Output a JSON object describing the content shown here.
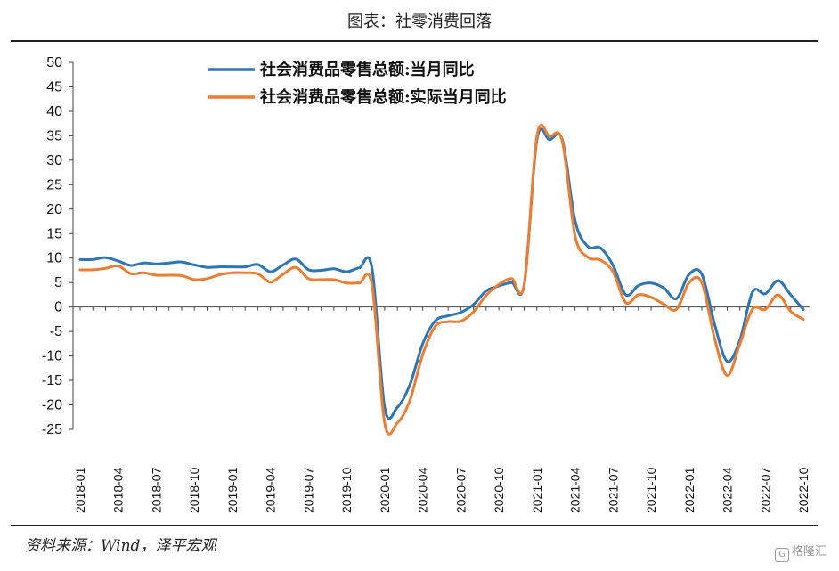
{
  "header": {
    "title": "图表：社零消费回落"
  },
  "footer": {
    "source": "资料来源：Wind，泽平宏观",
    "watermark": "格隆汇"
  },
  "chart_data": {
    "type": "line",
    "ylim": [
      -25,
      50
    ],
    "yticks": [
      50,
      45,
      40,
      35,
      30,
      25,
      20,
      15,
      10,
      5,
      0,
      -5,
      -10,
      -15,
      -20,
      -25
    ],
    "xticks": [
      "2018-01",
      "2018-04",
      "2018-07",
      "2018-10",
      "2019-01",
      "2019-04",
      "2019-07",
      "2019-10",
      "2020-01",
      "2020-04",
      "2020-07",
      "2020-10",
      "2021-01",
      "2021-04",
      "2021-07",
      "2021-10",
      "2022-01",
      "2022-04",
      "2022-07",
      "2022-10"
    ],
    "x": [
      "2018-01",
      "2018-02",
      "2018-03",
      "2018-04",
      "2018-05",
      "2018-06",
      "2018-07",
      "2018-08",
      "2018-09",
      "2018-10",
      "2018-11",
      "2018-12",
      "2019-01",
      "2019-02",
      "2019-03",
      "2019-04",
      "2019-05",
      "2019-06",
      "2019-07",
      "2019-08",
      "2019-09",
      "2019-10",
      "2019-11",
      "2019-12",
      "2020-01",
      "2020-02",
      "2020-03",
      "2020-04",
      "2020-05",
      "2020-06",
      "2020-07",
      "2020-08",
      "2020-09",
      "2020-10",
      "2020-11",
      "2020-12",
      "2021-01",
      "2021-02",
      "2021-03",
      "2021-04",
      "2021-05",
      "2021-06",
      "2021-07",
      "2021-08",
      "2021-09",
      "2021-10",
      "2021-11",
      "2021-12",
      "2022-01",
      "2022-02",
      "2022-03",
      "2022-04",
      "2022-05",
      "2022-06",
      "2022-07",
      "2022-08",
      "2022-09",
      "2022-10"
    ],
    "legend_position": "top-center",
    "series": [
      {
        "name": "社会消费品零售总额:当月同比",
        "color": "#2E75B6",
        "values": [
          9.7,
          9.7,
          10.1,
          9.4,
          8.5,
          9.0,
          8.8,
          9.0,
          9.2,
          8.6,
          8.1,
          8.2,
          8.2,
          8.2,
          8.7,
          7.2,
          8.6,
          9.8,
          7.6,
          7.5,
          7.8,
          7.2,
          8.0,
          8.0,
          -20.5,
          -20.5,
          -15.8,
          -7.5,
          -2.8,
          -1.8,
          -1.1,
          0.5,
          3.3,
          4.3,
          5.0,
          4.6,
          34.2,
          34.2,
          34.2,
          17.7,
          12.4,
          12.1,
          8.5,
          2.5,
          4.4,
          4.9,
          3.9,
          1.7,
          6.7,
          6.7,
          -3.5,
          -11.1,
          -6.7,
          3.1,
          2.7,
          5.4,
          2.5,
          -0.5
        ]
      },
      {
        "name": "社会消费品零售总额:实际当月同比",
        "color": "#ED7D31",
        "values": [
          7.6,
          7.6,
          7.9,
          8.4,
          6.8,
          7.0,
          6.5,
          6.5,
          6.4,
          5.6,
          5.8,
          6.6,
          7.0,
          7.0,
          6.8,
          5.1,
          6.7,
          8.1,
          5.8,
          5.6,
          5.6,
          4.9,
          4.9,
          4.6,
          -23.7,
          -23.7,
          -19.0,
          -9.7,
          -3.9,
          -3.0,
          -2.9,
          -1.0,
          2.4,
          4.6,
          5.8,
          4.6,
          34.9,
          34.9,
          33.9,
          14.6,
          10.2,
          9.6,
          7.2,
          0.9,
          2.5,
          2.0,
          0.6,
          -0.5,
          5.0,
          5.0,
          -6.4,
          -14.0,
          -7.5,
          -0.4,
          -0.5,
          2.5,
          -0.9,
          -2.5
        ]
      }
    ]
  }
}
